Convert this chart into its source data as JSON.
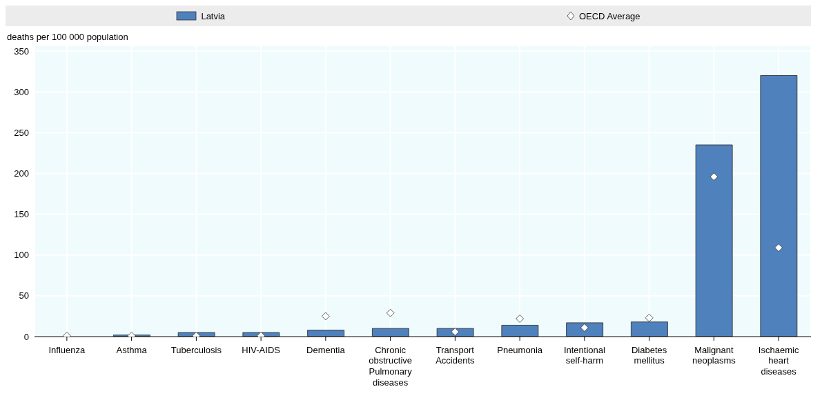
{
  "chart_data": {
    "type": "bar",
    "ylabel": "deaths per 100 000 population",
    "categories": [
      "Influenza",
      "Asthma",
      "Tuberculosis",
      "HIV-AIDS",
      "Dementia",
      "Chronic obstructive Pulmonary diseases",
      "Transport Accidents",
      "Pneumonia",
      "Intentional self-harm",
      "Diabetes mellitus",
      "Malignant neoplasms",
      "Ischaemic heart diseases"
    ],
    "series": [
      {
        "name": "Latvia",
        "color": "#4f81bd",
        "values": [
          0,
          2,
          5,
          5,
          8,
          10,
          10,
          14,
          17,
          18,
          235,
          320
        ]
      },
      {
        "name": "OECD Average",
        "type": "scatter",
        "color": "#ffffff",
        "marker": "diamond",
        "values": [
          1,
          1,
          1,
          1,
          25,
          29,
          6,
          22,
          11,
          23,
          196,
          109
        ]
      }
    ],
    "ylim": [
      0,
      350
    ],
    "yticks": [
      0,
      50,
      100,
      150,
      200,
      250,
      300,
      350
    ],
    "grid": true,
    "legend": "top"
  }
}
